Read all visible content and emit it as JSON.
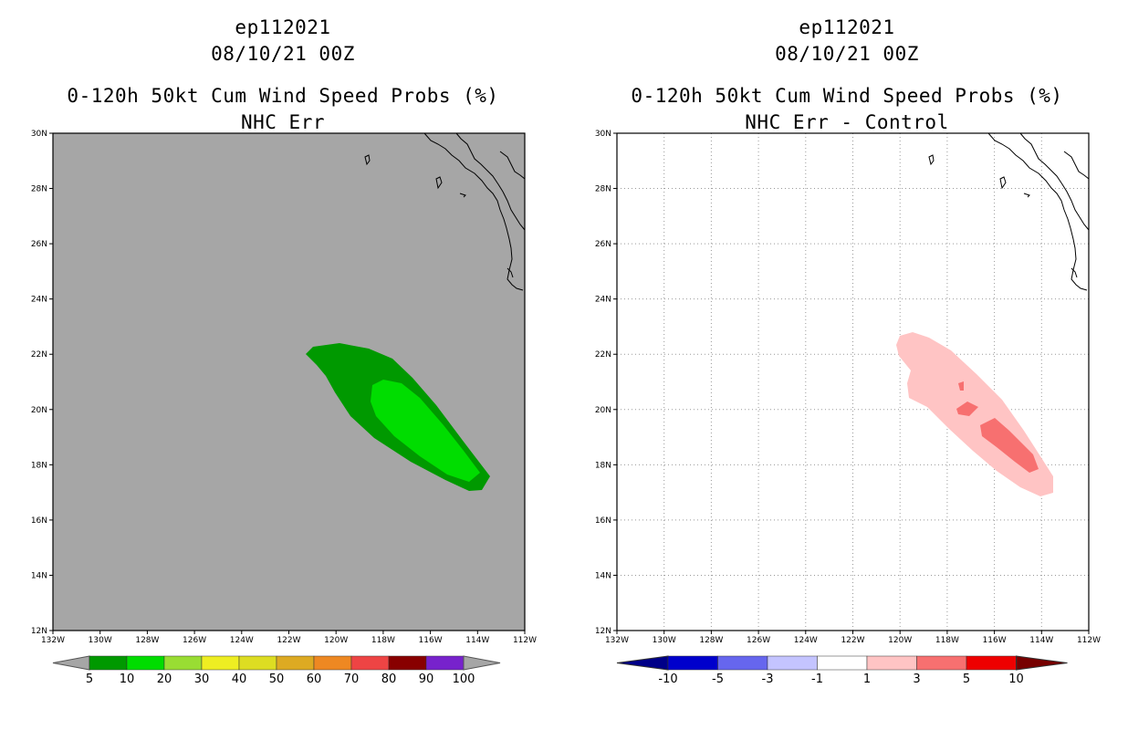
{
  "left": {
    "title": {
      "storm_id": "ep112021",
      "date": "08/10/21 00Z",
      "product": "0-120h 50kt Cum Wind Speed Probs (%)",
      "subtitle": "NHC Err"
    },
    "colorbar": {
      "labels": [
        "5",
        "10",
        "20",
        "30",
        "40",
        "50",
        "60",
        "70",
        "80",
        "90",
        "100"
      ],
      "colors": [
        "#009900",
        "#00dd00",
        "#99dd33",
        "#eeee22",
        "#dddd22",
        "#ddaa22",
        "#ee8822",
        "#ee4444",
        "#880000",
        "#7722cc"
      ],
      "extend_color": "#a6a6a6"
    },
    "background_color": "#a6a6a6"
  },
  "right": {
    "title": {
      "storm_id": "ep112021",
      "date": "08/10/21 00Z",
      "product": "0-120h 50kt Cum Wind Speed Probs (%)",
      "subtitle": "NHC Err - Control"
    },
    "colorbar": {
      "labels": [
        "-10",
        "-5",
        "-3",
        "-1",
        "1",
        "3",
        "5",
        "10"
      ],
      "colors": [
        "#0000cc",
        "#6666ee",
        "#c4c4ff",
        "#ffffff",
        "#ffc4c4",
        "#f77070",
        "#ee0000"
      ],
      "low_extend_color": "#000088",
      "high_extend_color": "#770000"
    },
    "background_color": "#ffffff"
  },
  "axes": {
    "lat_labels": [
      "30N",
      "28N",
      "26N",
      "24N",
      "22N",
      "20N",
      "18N",
      "16N",
      "14N",
      "12N"
    ],
    "lon_labels": [
      "132W",
      "130W",
      "128W",
      "126W",
      "124W",
      "122W",
      "120W",
      "118W",
      "116W",
      "114W",
      "112W"
    ]
  },
  "colors": {
    "prob_5_10": "#009900",
    "prob_10_20": "#00dd00",
    "diff_1_3": "#ffc4c4",
    "diff_3_5": "#f77070",
    "coast": "#000000"
  }
}
